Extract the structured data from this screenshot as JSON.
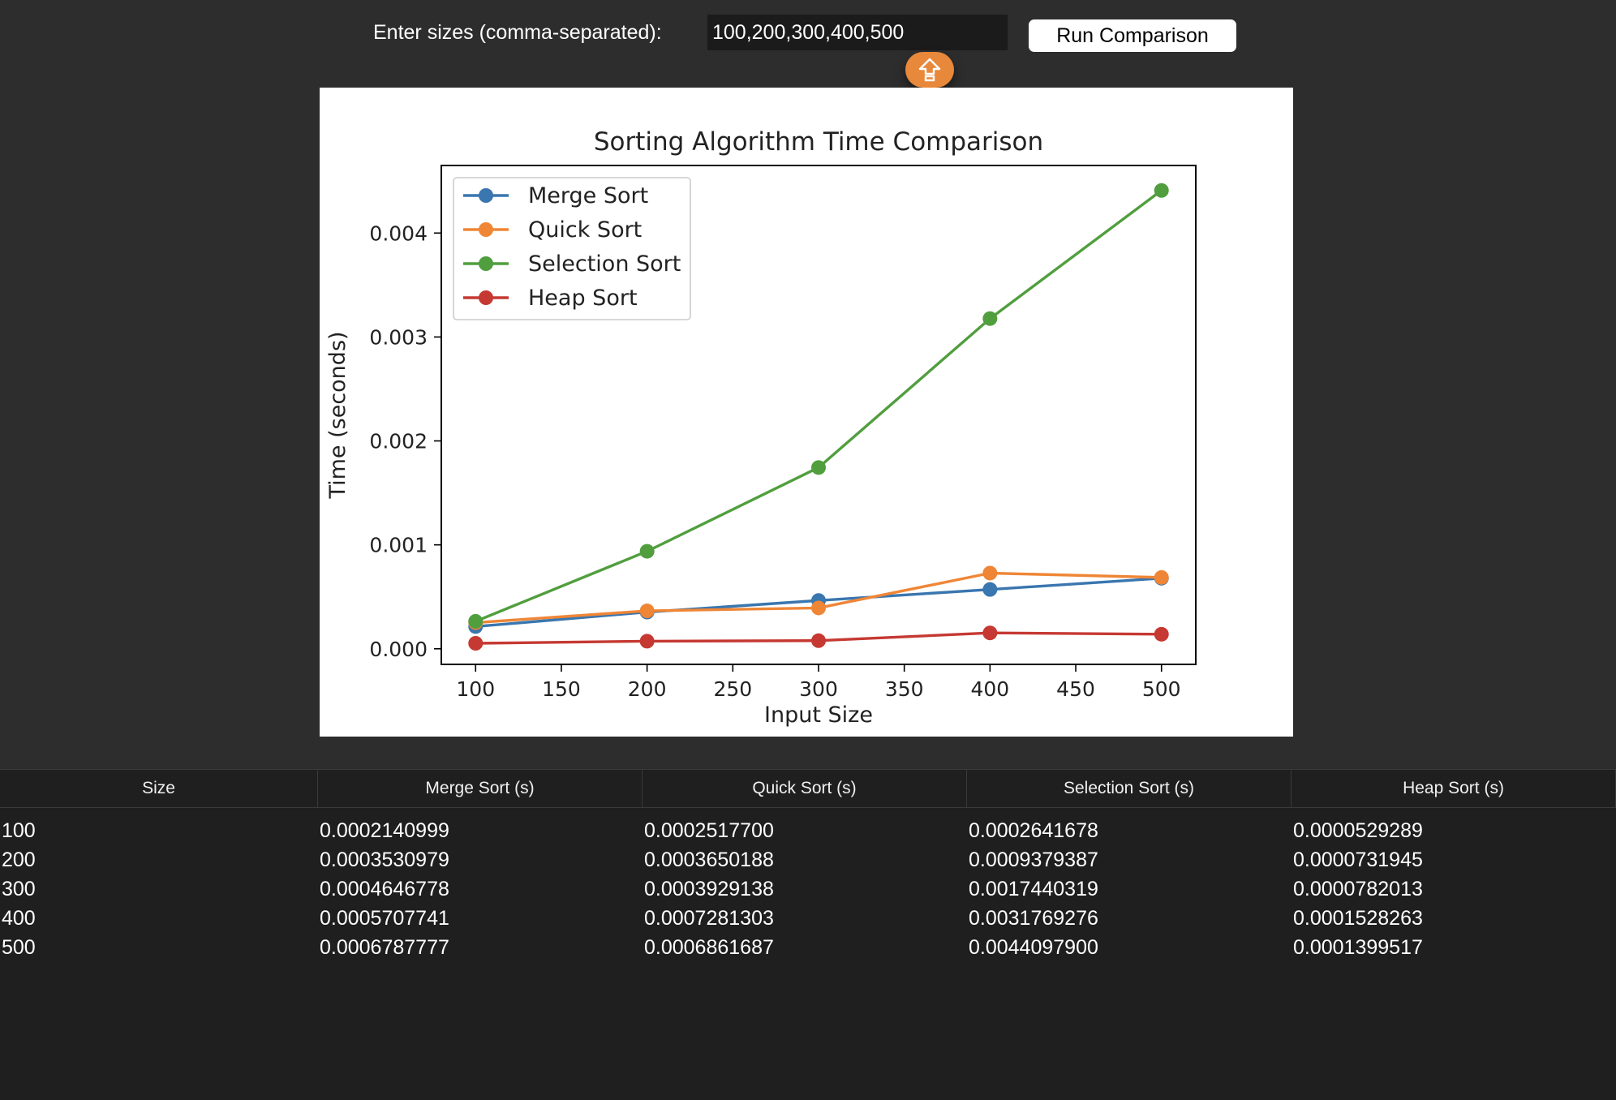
{
  "controls": {
    "size_label": "Enter sizes (comma-separated):",
    "size_input_value": "100,200,300,400,500",
    "run_button_label": "Run Comparison",
    "floating_button_icon": "upload-arrow-icon",
    "floating_button_color": "#e8883a"
  },
  "chart_data": {
    "type": "line",
    "title": "Sorting Algorithm Time Comparison",
    "xlabel": "Input Size",
    "ylabel": "Time (seconds)",
    "x": [
      100,
      200,
      300,
      400,
      500
    ],
    "xlim": [
      80,
      520
    ],
    "ylim": [
      -0.00015,
      0.00465
    ],
    "xticks": [
      100,
      150,
      200,
      250,
      300,
      350,
      400,
      450,
      500
    ],
    "yticks": [
      0,
      0.001,
      0.002,
      0.003,
      0.004
    ],
    "ytick_labels": [
      "0.000",
      "0.001",
      "0.002",
      "0.003",
      "0.004"
    ],
    "legend_position": "top-left",
    "grid": false,
    "series": [
      {
        "name": "Merge Sort",
        "color": "#3a76af",
        "values": [
          0.0002140999,
          0.0003530979,
          0.0004646778,
          0.0005707741,
          0.0006787777
        ]
      },
      {
        "name": "Quick Sort",
        "color": "#ef8636",
        "values": [
          0.00025177,
          0.0003650188,
          0.0003929138,
          0.0007281303,
          0.0006861687
        ]
      },
      {
        "name": "Selection Sort",
        "color": "#519e3e",
        "values": [
          0.0002641678,
          0.0009379387,
          0.0017440319,
          0.0031769276,
          0.00440979
        ]
      },
      {
        "name": "Heap Sort",
        "color": "#c53932",
        "values": [
          5.29289e-05,
          7.31945e-05,
          7.82013e-05,
          0.0001528263,
          0.0001399517
        ]
      }
    ]
  },
  "table": {
    "headers": [
      "Size",
      "Merge Sort (s)",
      "Quick Sort (s)",
      "Selection Sort (s)",
      "Heap Sort (s)"
    ],
    "rows": [
      [
        "100",
        "0.0002140999",
        "0.0002517700",
        "0.0002641678",
        "0.0000529289"
      ],
      [
        "200",
        "0.0003530979",
        "0.0003650188",
        "0.0009379387",
        "0.0000731945"
      ],
      [
        "300",
        "0.0004646778",
        "0.0003929138",
        "0.0017440319",
        "0.0000782013"
      ],
      [
        "400",
        "0.0005707741",
        "0.0007281303",
        "0.0031769276",
        "0.0001528263"
      ],
      [
        "500",
        "0.0006787777",
        "0.0006861687",
        "0.0044097900",
        "0.0001399517"
      ]
    ]
  }
}
